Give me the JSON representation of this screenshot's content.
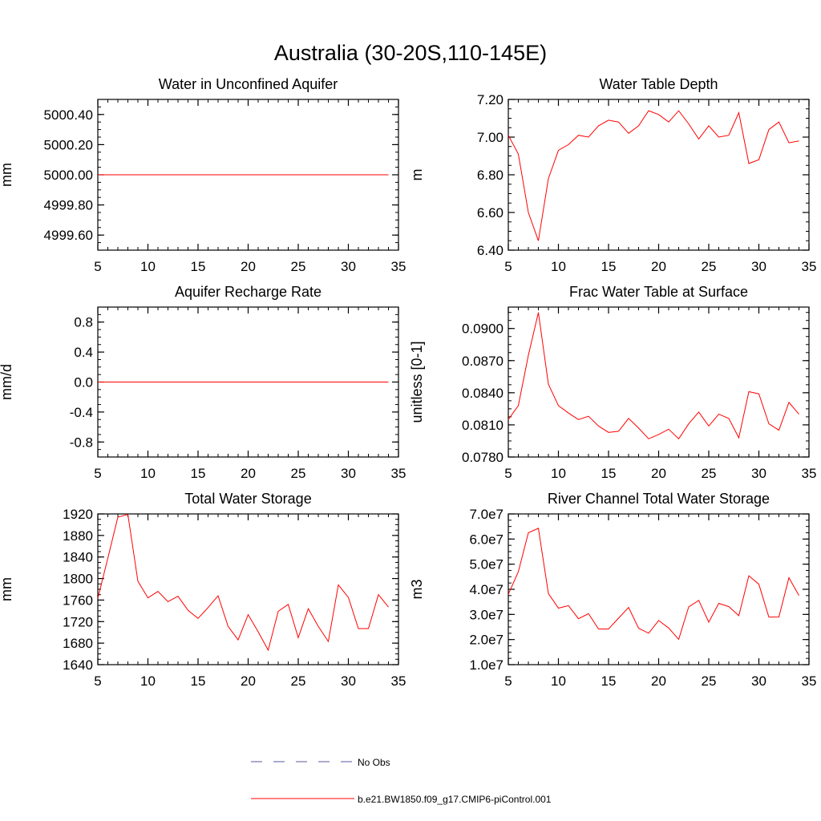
{
  "figure": {
    "title": "Australia (30-20S,110-145E)"
  },
  "legend": {
    "entries": [
      {
        "label": "No Obs",
        "color": "#5a5aa0",
        "style": "dashed"
      },
      {
        "label": "b.e21.BW1850.f09_g17.CMIP6-piControl.001",
        "color": "#ff0000",
        "style": "solid"
      }
    ]
  },
  "chart_data": [
    {
      "type": "line",
      "title": "Water in Unconfined Aquifer",
      "ylabel": "mm",
      "xlim": [
        5,
        35
      ],
      "ylim": [
        4999.5,
        5000.5
      ],
      "x_ticks": [
        5,
        10,
        15,
        20,
        25,
        30,
        35
      ],
      "x_tick_labels": [
        "5",
        "10",
        "15",
        "20",
        "25",
        "30",
        "35"
      ],
      "y_ticks": [
        4999.6,
        4999.8,
        5000.0,
        5000.2,
        5000.4
      ],
      "y_tick_labels": [
        "4999.60",
        "4999.80",
        "5000.00",
        "5000.20",
        "5000.40"
      ],
      "series": [
        {
          "color": "#ff0000",
          "x": [
            5,
            6,
            7,
            8,
            9,
            10,
            11,
            12,
            13,
            14,
            15,
            16,
            17,
            18,
            19,
            20,
            21,
            22,
            23,
            24,
            25,
            26,
            27,
            28,
            29,
            30,
            31,
            32,
            33,
            34
          ],
          "y": [
            5000,
            5000,
            5000,
            5000,
            5000,
            5000,
            5000,
            5000,
            5000,
            5000,
            5000,
            5000,
            5000,
            5000,
            5000,
            5000,
            5000,
            5000,
            5000,
            5000,
            5000,
            5000,
            5000,
            5000,
            5000,
            5000,
            5000,
            5000,
            5000,
            5000
          ]
        }
      ]
    },
    {
      "type": "line",
      "title": "Water Table Depth",
      "ylabel": "m",
      "xlim": [
        5,
        35
      ],
      "ylim": [
        6.4,
        7.2
      ],
      "x_ticks": [
        5,
        10,
        15,
        20,
        25,
        30,
        35
      ],
      "x_tick_labels": [
        "5",
        "10",
        "15",
        "20",
        "25",
        "30",
        "35"
      ],
      "y_ticks": [
        6.4,
        6.6,
        6.8,
        7.0,
        7.2
      ],
      "y_tick_labels": [
        "6.40",
        "6.60",
        "6.80",
        "7.00",
        "7.20"
      ],
      "series": [
        {
          "color": "#ff0000",
          "x": [
            5,
            6,
            7,
            8,
            9,
            10,
            11,
            12,
            13,
            14,
            15,
            16,
            17,
            18,
            19,
            20,
            21,
            22,
            23,
            24,
            25,
            26,
            27,
            28,
            29,
            30,
            31,
            32,
            33,
            34
          ],
          "y": [
            7.01,
            6.91,
            6.6,
            6.45,
            6.78,
            6.93,
            6.96,
            7.01,
            7.0,
            7.06,
            7.09,
            7.08,
            7.02,
            7.06,
            7.14,
            7.12,
            7.08,
            7.14,
            7.07,
            6.99,
            7.06,
            7.0,
            7.01,
            7.13,
            6.86,
            6.88,
            7.04,
            7.08,
            6.97,
            6.98
          ]
        }
      ]
    },
    {
      "type": "line",
      "title": "Aquifer Recharge Rate",
      "ylabel": "mm/d",
      "xlim": [
        5,
        35
      ],
      "ylim": [
        -1.0,
        1.0
      ],
      "x_ticks": [
        5,
        10,
        15,
        20,
        25,
        30,
        35
      ],
      "x_tick_labels": [
        "5",
        "10",
        "15",
        "20",
        "25",
        "30",
        "35"
      ],
      "y_ticks": [
        -0.8,
        -0.4,
        0.0,
        0.4,
        0.8
      ],
      "y_tick_labels": [
        "-0.8",
        "-0.4",
        "0.0",
        "0.4",
        "0.8"
      ],
      "series": [
        {
          "color": "#ff0000",
          "x": [
            5,
            6,
            7,
            8,
            9,
            10,
            11,
            12,
            13,
            14,
            15,
            16,
            17,
            18,
            19,
            20,
            21,
            22,
            23,
            24,
            25,
            26,
            27,
            28,
            29,
            30,
            31,
            32,
            33,
            34
          ],
          "y": [
            0,
            0,
            0,
            0,
            0,
            0,
            0,
            0,
            0,
            0,
            0,
            0,
            0,
            0,
            0,
            0,
            0,
            0,
            0,
            0,
            0,
            0,
            0,
            0,
            0,
            0,
            0,
            0,
            0,
            0
          ]
        }
      ]
    },
    {
      "type": "line",
      "title": "Frac Water Table at Surface",
      "ylabel": "unitless [0-1]",
      "xlim": [
        5,
        35
      ],
      "ylim": [
        0.078,
        0.092
      ],
      "x_ticks": [
        5,
        10,
        15,
        20,
        25,
        30,
        35
      ],
      "x_tick_labels": [
        "5",
        "10",
        "15",
        "20",
        "25",
        "30",
        "35"
      ],
      "y_ticks": [
        0.078,
        0.081,
        0.084,
        0.087,
        0.09
      ],
      "y_tick_labels": [
        "0.0780",
        "0.0810",
        "0.0840",
        "0.0870",
        "0.0900"
      ],
      "series": [
        {
          "color": "#ff0000",
          "x": [
            5,
            6,
            7,
            8,
            9,
            10,
            11,
            12,
            13,
            14,
            15,
            16,
            17,
            18,
            19,
            20,
            21,
            22,
            23,
            24,
            25,
            26,
            27,
            28,
            29,
            30,
            31,
            32,
            33,
            34
          ],
          "y": [
            0.0815,
            0.0828,
            0.0875,
            0.0915,
            0.0848,
            0.0828,
            0.0821,
            0.0815,
            0.0818,
            0.0809,
            0.0803,
            0.0804,
            0.0816,
            0.0807,
            0.0797,
            0.0801,
            0.0806,
            0.0797,
            0.0811,
            0.0822,
            0.0809,
            0.082,
            0.0816,
            0.0798,
            0.0841,
            0.0839,
            0.0811,
            0.0805,
            0.0831,
            0.082
          ]
        }
      ]
    },
    {
      "type": "line",
      "title": "Total Water Storage",
      "ylabel": "mm",
      "xlim": [
        5,
        35
      ],
      "ylim": [
        1640,
        1920
      ],
      "x_ticks": [
        5,
        10,
        15,
        20,
        25,
        30,
        35
      ],
      "x_tick_labels": [
        "5",
        "10",
        "15",
        "20",
        "25",
        "30",
        "35"
      ],
      "y_ticks": [
        1640,
        1680,
        1720,
        1760,
        1800,
        1840,
        1880,
        1920
      ],
      "y_tick_labels": [
        "1640",
        "1680",
        "1720",
        "1760",
        "1800",
        "1840",
        "1880",
        "1920"
      ],
      "series": [
        {
          "color": "#ff0000",
          "x": [
            5,
            6,
            7,
            8,
            9,
            10,
            11,
            12,
            13,
            14,
            15,
            16,
            17,
            18,
            19,
            20,
            21,
            22,
            23,
            24,
            25,
            26,
            27,
            28,
            29,
            30,
            31,
            32,
            33,
            34
          ],
          "y": [
            1763,
            1838,
            1914,
            1919,
            1795,
            1764,
            1776,
            1757,
            1767,
            1741,
            1726,
            1746,
            1768,
            1711,
            1686,
            1733,
            1701,
            1667,
            1739,
            1752,
            1690,
            1744,
            1711,
            1683,
            1788,
            1765,
            1707,
            1707,
            1770,
            1747
          ]
        }
      ]
    },
    {
      "type": "line",
      "title": "River Channel Total Water Storage",
      "ylabel": "m3",
      "xlim": [
        5,
        35
      ],
      "ylim": [
        10000000,
        70000000
      ],
      "x_ticks": [
        5,
        10,
        15,
        20,
        25,
        30,
        35
      ],
      "x_tick_labels": [
        "5",
        "10",
        "15",
        "20",
        "25",
        "30",
        "35"
      ],
      "y_ticks": [
        10000000,
        20000000,
        30000000,
        40000000,
        50000000,
        60000000,
        70000000
      ],
      "y_tick_labels": [
        "1.0e7",
        "2.0e7",
        "3.0e7",
        "4.0e7",
        "5.0e7",
        "6.0e7",
        "7.0e7"
      ],
      "series": [
        {
          "color": "#ff0000",
          "x": [
            5,
            6,
            7,
            8,
            9,
            10,
            11,
            12,
            13,
            14,
            15,
            16,
            17,
            18,
            19,
            20,
            21,
            22,
            23,
            24,
            25,
            26,
            27,
            28,
            29,
            30,
            31,
            32,
            33,
            34
          ],
          "y": [
            38000000,
            47000000,
            62500000,
            64300000,
            38300000,
            32500000,
            33500000,
            28300000,
            30300000,
            24200000,
            24200000,
            28500000,
            32800000,
            24500000,
            22500000,
            27600000,
            24600000,
            20100000,
            33000000,
            35600000,
            26900000,
            34400000,
            33100000,
            29500000,
            45400000,
            42000000,
            28900000,
            29000000,
            44600000,
            37500000
          ]
        }
      ]
    }
  ]
}
